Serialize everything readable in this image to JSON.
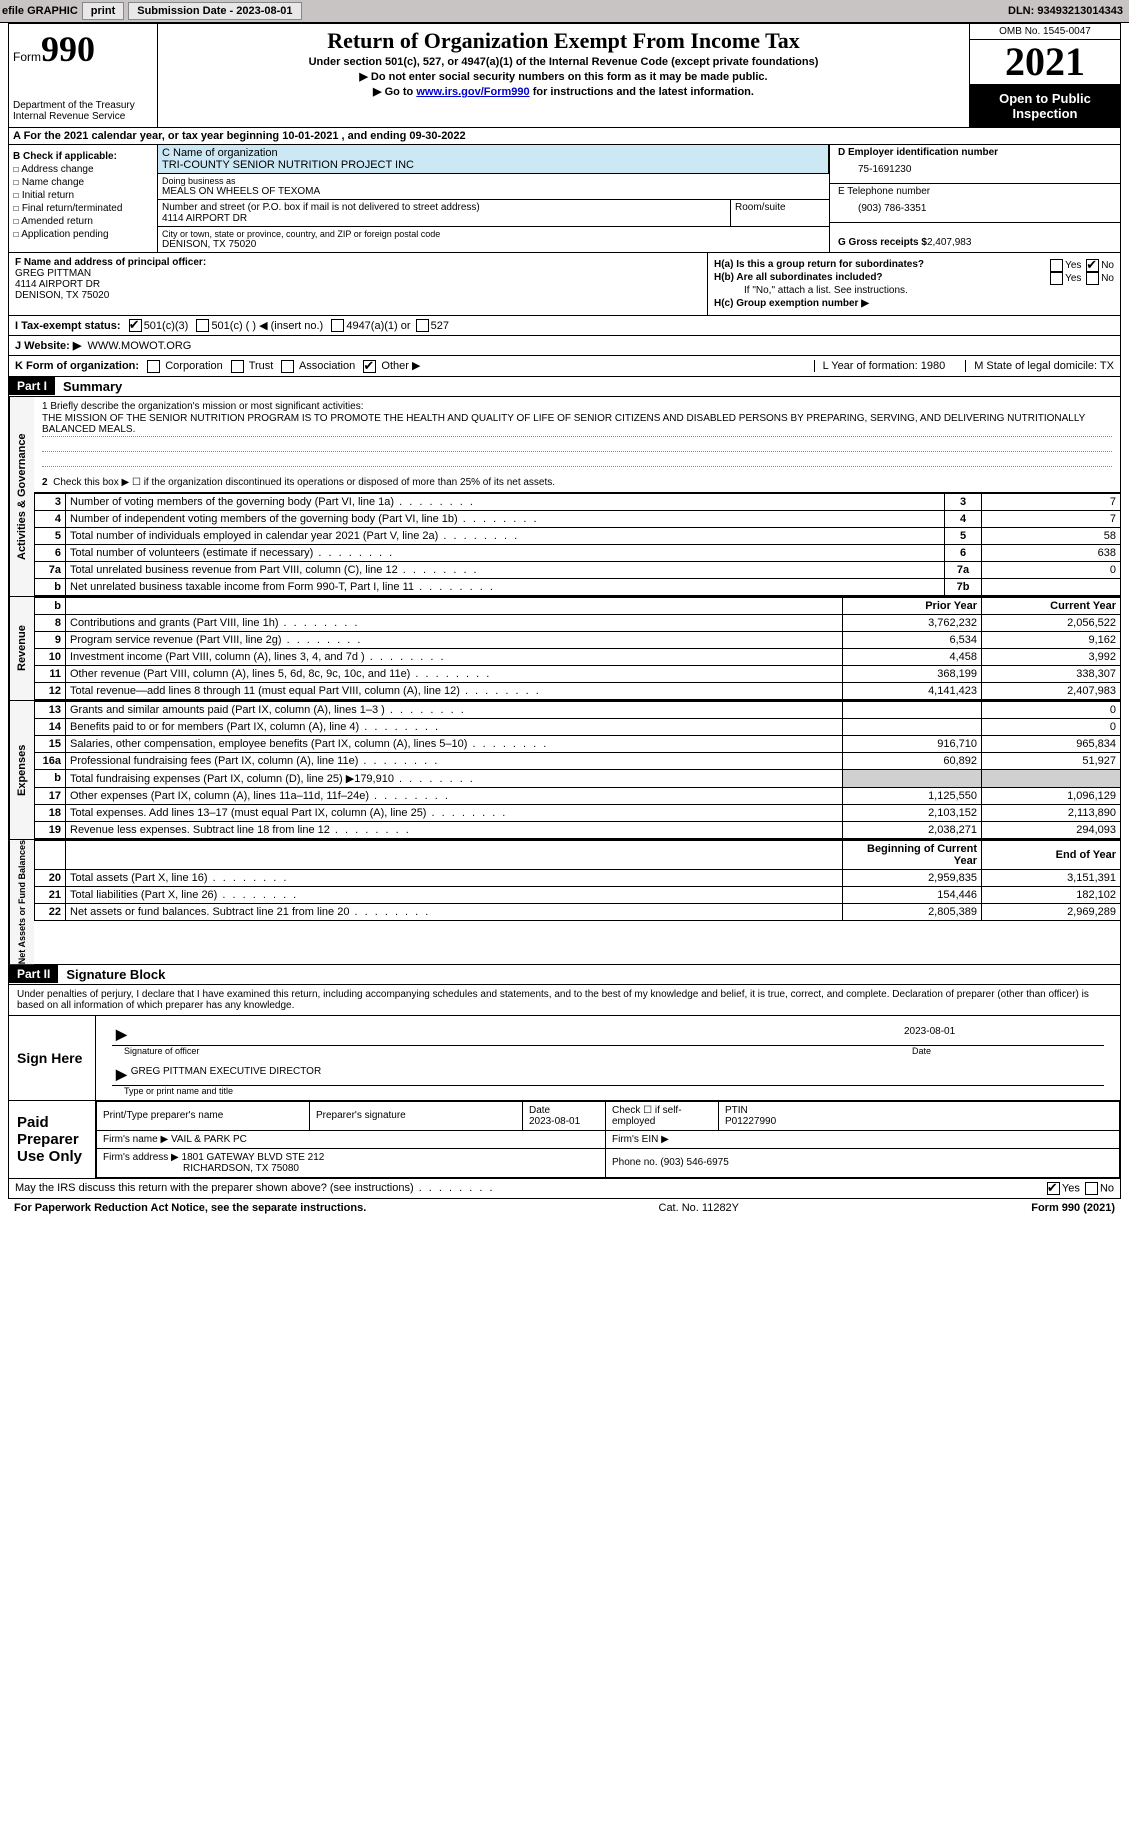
{
  "toolbar": {
    "efile": "efile GRAPHIC",
    "print": "print",
    "sub_label": "Submission Date - 2023-08-01",
    "dln": "DLN: 93493213014343"
  },
  "header": {
    "form_word": "Form",
    "form_num": "990",
    "dept": "Department of the Treasury",
    "irs": "Internal Revenue Service",
    "title": "Return of Organization Exempt From Income Tax",
    "sub": "Under section 501(c), 527, or 4947(a)(1) of the Internal Revenue Code (except private foundations)",
    "note1": "▶ Do not enter social security numbers on this form as it may be made public.",
    "note2_pre": "▶ Go to ",
    "note2_link": "www.irs.gov/Form990",
    "note2_post": " for instructions and the latest information.",
    "omb": "OMB No. 1545-0047",
    "year": "2021",
    "otp": "Open to Public Inspection"
  },
  "row_a": {
    "text_pre": "A For the 2021 calendar year, or tax year beginning ",
    "begin": "10-01-2021",
    "mid": " , and ending ",
    "end": "09-30-2022"
  },
  "col_b": {
    "header": "B Check if applicable:",
    "items": [
      "Address change",
      "Name change",
      "Initial return",
      "Final return/terminated",
      "Amended return",
      "Application pending"
    ]
  },
  "org": {
    "name_lbl": "C Name of organization",
    "name": "TRI-COUNTY SENIOR NUTRITION PROJECT INC",
    "dba_lbl": "Doing business as",
    "dba": "MEALS ON WHEELS OF TEXOMA",
    "street_lbl": "Number and street (or P.O. box if mail is not delivered to street address)",
    "street": "4114 AIRPORT DR",
    "suite_lbl": "Room/suite",
    "city_lbl": "City or town, state or province, country, and ZIP or foreign postal code",
    "city": "DENISON, TX  75020"
  },
  "col_d": {
    "ein_lbl": "D Employer identification number",
    "ein": "75-1691230",
    "tel_lbl": "E Telephone number",
    "tel": "(903) 786-3351",
    "gross_lbl": "G Gross receipts $",
    "gross": "2,407,983"
  },
  "section_f": {
    "lbl": "F Name and address of principal officer:",
    "name": "GREG PITTMAN",
    "street": "4114 AIRPORT DR",
    "city": "DENISON, TX  75020"
  },
  "section_h": {
    "ha": "H(a)  Is this a group return for subordinates?",
    "hb": "H(b)  Are all subordinates included?",
    "hb_note": "If \"No,\" attach a list. See instructions.",
    "hc": "H(c)  Group exemption number ▶",
    "yes": "Yes",
    "no": "No"
  },
  "row_i": {
    "lbl": "I   Tax-exempt status:",
    "o1": "501(c)(3)",
    "o2": "501(c) (   ) ◀ (insert no.)",
    "o3": "4947(a)(1) or",
    "o4": "527"
  },
  "row_j": {
    "lbl": "J   Website: ▶",
    "val": "WWW.MOWOT.ORG"
  },
  "row_k": {
    "lbl": "K Form of organization:",
    "o1": "Corporation",
    "o2": "Trust",
    "o3": "Association",
    "o4": "Other ▶",
    "l": "L Year of formation: 1980",
    "m": "M State of legal domicile: TX"
  },
  "part1": {
    "hdr": "Part I",
    "title": "Summary"
  },
  "summary": {
    "vtab1": "Activities & Governance",
    "vtab2": "Revenue",
    "vtab3": "Expenses",
    "vtab4": "Net Assets or Fund Balances",
    "line1_lbl": "1  Briefly describe the organization's mission or most significant activities:",
    "mission": "THE MISSION OF THE SENIOR NUTRITION PROGRAM IS TO PROMOTE THE HEALTH AND QUALITY OF LIFE OF SENIOR CITIZENS AND DISABLED PERSONS BY PREPARING, SERVING, AND DELIVERING NUTRITIONALLY BALANCED MEALS.",
    "line2": "Check this box ▶ ☐ if the organization discontinued its operations or disposed of more than 25% of its net assets.",
    "rows_ag": [
      {
        "n": "3",
        "t": "Number of voting members of the governing body (Part VI, line 1a)",
        "b": "3",
        "v": "7"
      },
      {
        "n": "4",
        "t": "Number of independent voting members of the governing body (Part VI, line 1b)",
        "b": "4",
        "v": "7"
      },
      {
        "n": "5",
        "t": "Total number of individuals employed in calendar year 2021 (Part V, line 2a)",
        "b": "5",
        "v": "58"
      },
      {
        "n": "6",
        "t": "Total number of volunteers (estimate if necessary)",
        "b": "6",
        "v": "638"
      },
      {
        "n": "7a",
        "t": "Total unrelated business revenue from Part VIII, column (C), line 12",
        "b": "7a",
        "v": "0"
      },
      {
        "n": "b",
        "t": "Net unrelated business taxable income from Form 990-T, Part I, line 11",
        "b": "7b",
        "v": ""
      }
    ],
    "col_py": "Prior Year",
    "col_cy": "Current Year",
    "rows_rev": [
      {
        "n": "8",
        "t": "Contributions and grants (Part VIII, line 1h)",
        "py": "3,762,232",
        "cy": "2,056,522"
      },
      {
        "n": "9",
        "t": "Program service revenue (Part VIII, line 2g)",
        "py": "6,534",
        "cy": "9,162"
      },
      {
        "n": "10",
        "t": "Investment income (Part VIII, column (A), lines 3, 4, and 7d )",
        "py": "4,458",
        "cy": "3,992"
      },
      {
        "n": "11",
        "t": "Other revenue (Part VIII, column (A), lines 5, 6d, 8c, 9c, 10c, and 11e)",
        "py": "368,199",
        "cy": "338,307"
      },
      {
        "n": "12",
        "t": "Total revenue—add lines 8 through 11 (must equal Part VIII, column (A), line 12)",
        "py": "4,141,423",
        "cy": "2,407,983"
      }
    ],
    "rows_exp": [
      {
        "n": "13",
        "t": "Grants and similar amounts paid (Part IX, column (A), lines 1–3 )",
        "py": "",
        "cy": "0"
      },
      {
        "n": "14",
        "t": "Benefits paid to or for members (Part IX, column (A), line 4)",
        "py": "",
        "cy": "0"
      },
      {
        "n": "15",
        "t": "Salaries, other compensation, employee benefits (Part IX, column (A), lines 5–10)",
        "py": "916,710",
        "cy": "965,834"
      },
      {
        "n": "16a",
        "t": "Professional fundraising fees (Part IX, column (A), line 11e)",
        "py": "60,892",
        "cy": "51,927"
      },
      {
        "n": "b",
        "t": "Total fundraising expenses (Part IX, column (D), line 25) ▶179,910",
        "py": "shade",
        "cy": "shade"
      },
      {
        "n": "17",
        "t": "Other expenses (Part IX, column (A), lines 11a–11d, 11f–24e)",
        "py": "1,125,550",
        "cy": "1,096,129"
      },
      {
        "n": "18",
        "t": "Total expenses. Add lines 13–17 (must equal Part IX, column (A), line 25)",
        "py": "2,103,152",
        "cy": "2,113,890"
      },
      {
        "n": "19",
        "t": "Revenue less expenses. Subtract line 18 from line 12",
        "py": "2,038,271",
        "cy": "294,093"
      }
    ],
    "col_boy": "Beginning of Current Year",
    "col_eoy": "End of Year",
    "rows_na": [
      {
        "n": "20",
        "t": "Total assets (Part X, line 16)",
        "py": "2,959,835",
        "cy": "3,151,391"
      },
      {
        "n": "21",
        "t": "Total liabilities (Part X, line 26)",
        "py": "154,446",
        "cy": "182,102"
      },
      {
        "n": "22",
        "t": "Net assets or fund balances. Subtract line 21 from line 20",
        "py": "2,805,389",
        "cy": "2,969,289"
      }
    ]
  },
  "part2": {
    "hdr": "Part II",
    "title": "Signature Block"
  },
  "sig": {
    "decl": "Under penalties of perjury, I declare that I have examined this return, including accompanying schedules and statements, and to the best of my knowledge and belief, it is true, correct, and complete. Declaration of preparer (other than officer) is based on all information of which preparer has any knowledge.",
    "sign_here": "Sign Here",
    "sig_officer": "Signature of officer",
    "date": "Date",
    "date_val": "2023-08-01",
    "name_title": "GREG PITTMAN  EXECUTIVE DIRECTOR",
    "type_name": "Type or print name and title",
    "paid": "Paid Preparer Use Only",
    "p_name_lbl": "Print/Type preparer's name",
    "p_sig_lbl": "Preparer's signature",
    "p_date_lbl": "Date",
    "p_date": "2023-08-01",
    "p_check": "Check ☐ if self-employed",
    "ptin_lbl": "PTIN",
    "ptin": "P01227990",
    "firm_name_lbl": "Firm's name   ▶",
    "firm_name": "VAIL & PARK PC",
    "firm_ein_lbl": "Firm's EIN ▶",
    "firm_addr_lbl": "Firm's address ▶",
    "firm_addr": "1801 GATEWAY BLVD STE 212",
    "firm_city": "RICHARDSON, TX  75080",
    "phone_lbl": "Phone no.",
    "phone": "(903) 546-6975",
    "discuss": "May the IRS discuss this return with the preparer shown above? (see instructions)"
  },
  "footer": {
    "pra": "For Paperwork Reduction Act Notice, see the separate instructions.",
    "cat": "Cat. No. 11282Y",
    "form": "Form 990 (2021)"
  }
}
